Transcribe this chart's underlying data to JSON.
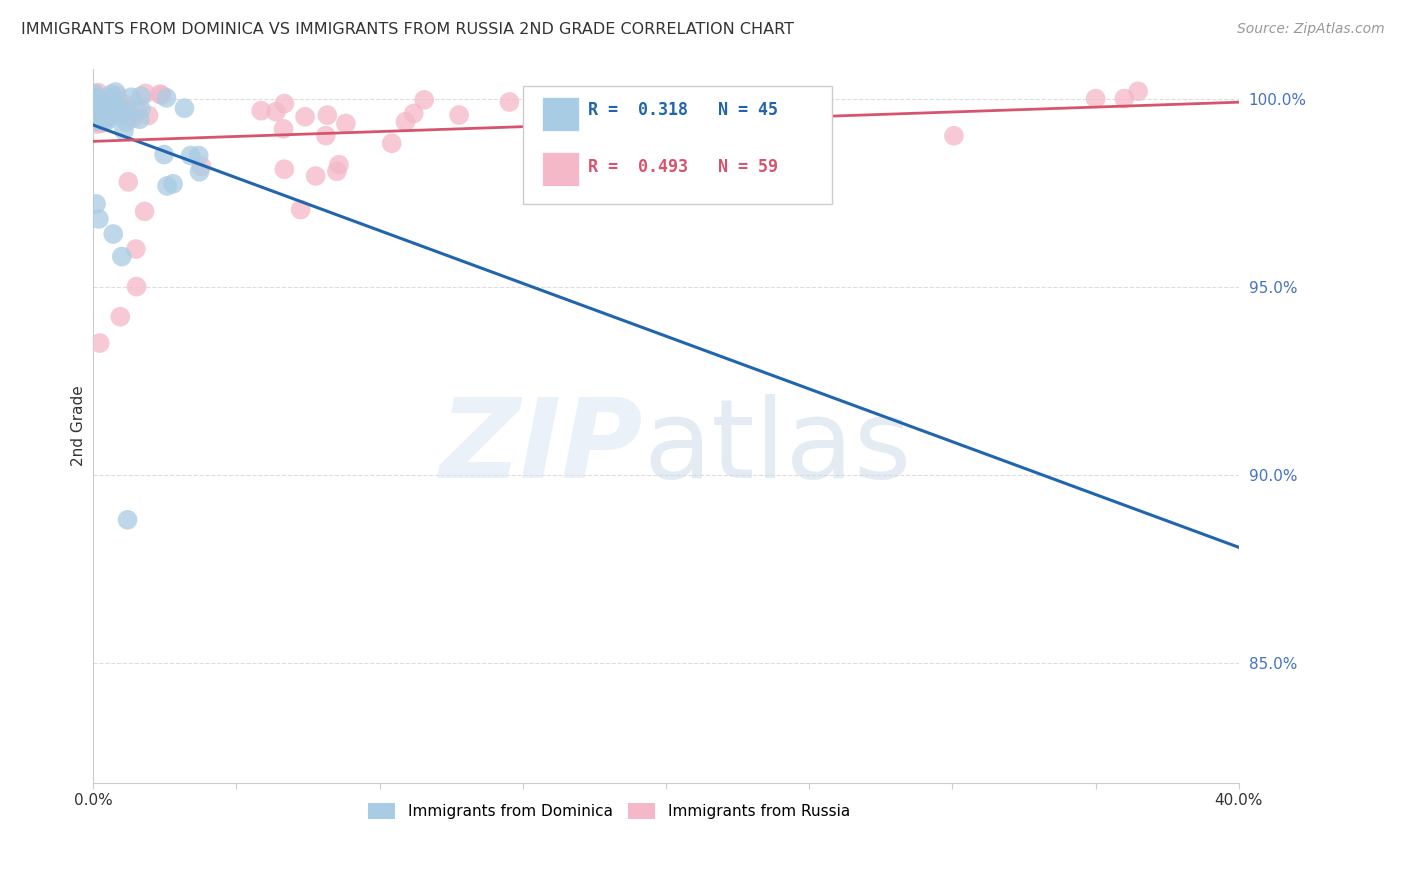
{
  "title": "IMMIGRANTS FROM DOMINICA VS IMMIGRANTS FROM RUSSIA 2ND GRADE CORRELATION CHART",
  "source": "Source: ZipAtlas.com",
  "ylabel": "2nd Grade",
  "legend_label1": "Immigrants from Dominica",
  "legend_label2": "Immigrants from Russia",
  "r1": 0.318,
  "n1": 45,
  "r2": 0.493,
  "n2": 59,
  "color_dominica": "#a8cce4",
  "color_russia": "#f4b8c8",
  "trendline_dominica": "#2166ac",
  "trendline_russia": "#d6546e",
  "background_color": "#ffffff",
  "grid_color": "#cccccc",
  "xlim": [
    0.0,
    0.4
  ],
  "ylim": [
    0.818,
    1.008
  ],
  "yticks": [
    1.0,
    0.95,
    0.9,
    0.85
  ],
  "ytick_labels": [
    "100.0%",
    "95.0%",
    "90.0%",
    "85.0%"
  ]
}
